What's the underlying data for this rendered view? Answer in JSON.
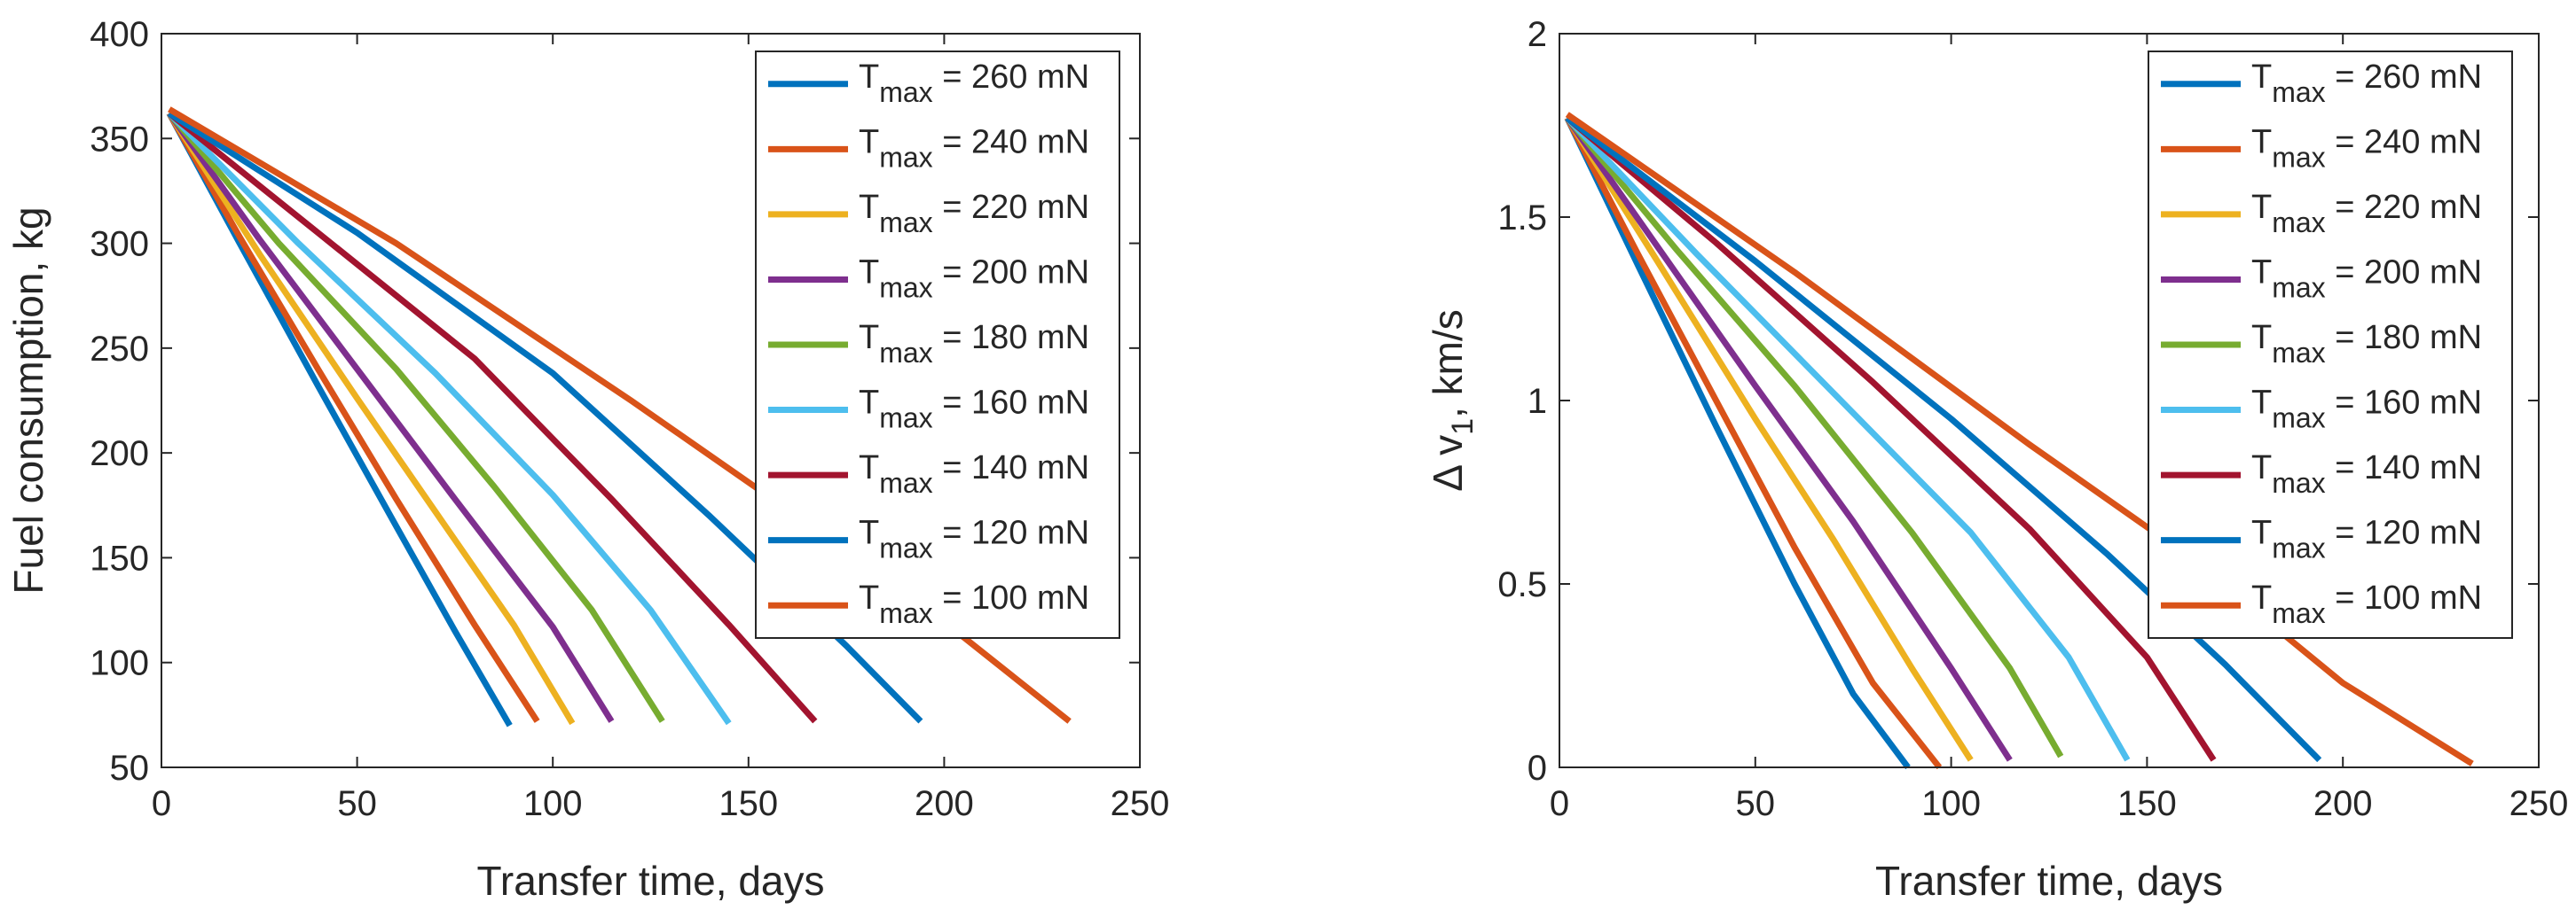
{
  "figure": {
    "panels_count": 2
  },
  "chart_data": [
    {
      "type": "line",
      "title": "",
      "xlabel": "Transfer time, days",
      "ylabel": "Fuel consumption, kg",
      "xlim": [
        0,
        250
      ],
      "ylim": [
        50,
        400
      ],
      "xticks": [
        0,
        50,
        100,
        150,
        200,
        250
      ],
      "yticks": [
        50,
        100,
        150,
        200,
        250,
        300,
        350,
        400
      ],
      "grid": false,
      "legend_position": "top-right",
      "series": [
        {
          "label_base": "T",
          "label_sub": "max",
          "label_rest": " = 260 mN",
          "color": "#0072BD",
          "points": [
            [
              2,
              362
            ],
            [
              20,
              300
            ],
            [
              40,
              232
            ],
            [
              60,
              165
            ],
            [
              75,
              115
            ],
            [
              89,
              70
            ]
          ]
        },
        {
          "label_base": "T",
          "label_sub": "max",
          "label_rest": " = 240 mN",
          "color": "#D95319",
          "points": [
            [
              2,
              362
            ],
            [
              20,
              303
            ],
            [
              40,
              240
            ],
            [
              60,
              178
            ],
            [
              80,
              118
            ],
            [
              96,
              72
            ]
          ]
        },
        {
          "label_base": "T",
          "label_sub": "max",
          "label_rest": " = 220 mN",
          "color": "#EDB120",
          "points": [
            [
              2,
              362
            ],
            [
              25,
              295
            ],
            [
              50,
              226
            ],
            [
              70,
              172
            ],
            [
              90,
              118
            ],
            [
              105,
              71
            ]
          ]
        },
        {
          "label_base": "T",
          "label_sub": "max",
          "label_rest": " = 200 mN",
          "color": "#7E2F8E",
          "points": [
            [
              2,
              362
            ],
            [
              25,
              302
            ],
            [
              50,
              240
            ],
            [
              75,
              178
            ],
            [
              100,
              117
            ],
            [
              115,
              72
            ]
          ]
        },
        {
          "label_base": "T",
          "label_sub": "max",
          "label_rest": " = 180 mN",
          "color": "#77AC30",
          "points": [
            [
              2,
              362
            ],
            [
              30,
              300
            ],
            [
              60,
              240
            ],
            [
              85,
              184
            ],
            [
              110,
              125
            ],
            [
              128,
              72
            ]
          ]
        },
        {
          "label_base": "T",
          "label_sub": "max",
          "label_rest": " = 160 mN",
          "color": "#4DBEEE",
          "points": [
            [
              2,
              362
            ],
            [
              35,
              300
            ],
            [
              70,
              238
            ],
            [
              100,
              180
            ],
            [
              125,
              125
            ],
            [
              145,
              71
            ]
          ]
        },
        {
          "label_base": "T",
          "label_sub": "max",
          "label_rest": " = 140 mN",
          "color": "#A2142F",
          "points": [
            [
              2,
              362
            ],
            [
              40,
              305
            ],
            [
              80,
              245
            ],
            [
              115,
              178
            ],
            [
              145,
              118
            ],
            [
              167,
              72
            ]
          ]
        },
        {
          "label_base": "T",
          "label_sub": "max",
          "label_rest": " = 120 mN",
          "color": "#0072BD",
          "points": [
            [
              2,
              362
            ],
            [
              50,
              305
            ],
            [
              100,
              238
            ],
            [
              140,
              170
            ],
            [
              175,
              108
            ],
            [
              194,
              72
            ]
          ]
        },
        {
          "label_base": "T",
          "label_sub": "max",
          "label_rest": " = 100 mN",
          "color": "#D95319",
          "points": [
            [
              2,
              364
            ],
            [
              60,
              300
            ],
            [
              120,
              225
            ],
            [
              170,
              160
            ],
            [
              205,
              112
            ],
            [
              232,
              72
            ]
          ]
        }
      ]
    },
    {
      "type": "line",
      "title": "",
      "xlabel": "Transfer time, days",
      "ylabel_main": "Δ v",
      "ylabel_sub": "1",
      "ylabel_rest": ", km/s",
      "xlim": [
        0,
        250
      ],
      "ylim": [
        0,
        2
      ],
      "xticks": [
        0,
        50,
        100,
        150,
        200,
        250
      ],
      "yticks": [
        0,
        0.5,
        1,
        1.5,
        2
      ],
      "grid": false,
      "legend_position": "top-right",
      "series": [
        {
          "label_base": "T",
          "label_sub": "max",
          "label_rest": " = 260 mN",
          "color": "#0072BD",
          "points": [
            [
              2,
              1.77
            ],
            [
              20,
              1.37
            ],
            [
              40,
              0.93
            ],
            [
              60,
              0.5
            ],
            [
              75,
              0.2
            ],
            [
              89,
              0.0
            ]
          ]
        },
        {
          "label_base": "T",
          "label_sub": "max",
          "label_rest": " = 240 mN",
          "color": "#D95319",
          "points": [
            [
              2,
              1.77
            ],
            [
              20,
              1.4
            ],
            [
              40,
              1.0
            ],
            [
              60,
              0.6
            ],
            [
              80,
              0.23
            ],
            [
              97,
              0.0
            ]
          ]
        },
        {
          "label_base": "T",
          "label_sub": "max",
          "label_rest": " = 220 mN",
          "color": "#EDB120",
          "points": [
            [
              2,
              1.77
            ],
            [
              25,
              1.38
            ],
            [
              50,
              0.95
            ],
            [
              70,
              0.62
            ],
            [
              90,
              0.27
            ],
            [
              105,
              0.02
            ]
          ]
        },
        {
          "label_base": "T",
          "label_sub": "max",
          "label_rest": " = 200 mN",
          "color": "#7E2F8E",
          "points": [
            [
              2,
              1.77
            ],
            [
              25,
              1.42
            ],
            [
              50,
              1.04
            ],
            [
              75,
              0.67
            ],
            [
              100,
              0.27
            ],
            [
              115,
              0.02
            ]
          ]
        },
        {
          "label_base": "T",
          "label_sub": "max",
          "label_rest": " = 180 mN",
          "color": "#77AC30",
          "points": [
            [
              2,
              1.77
            ],
            [
              30,
              1.41
            ],
            [
              60,
              1.04
            ],
            [
              90,
              0.64
            ],
            [
              115,
              0.27
            ],
            [
              128,
              0.03
            ]
          ]
        },
        {
          "label_base": "T",
          "label_sub": "max",
          "label_rest": " = 160 mN",
          "color": "#4DBEEE",
          "points": [
            [
              2,
              1.77
            ],
            [
              35,
              1.4
            ],
            [
              70,
              1.02
            ],
            [
              105,
              0.64
            ],
            [
              130,
              0.3
            ],
            [
              145,
              0.02
            ]
          ]
        },
        {
          "label_base": "T",
          "label_sub": "max",
          "label_rest": " = 140 mN",
          "color": "#A2142F",
          "points": [
            [
              2,
              1.77
            ],
            [
              40,
              1.43
            ],
            [
              80,
              1.05
            ],
            [
              120,
              0.65
            ],
            [
              150,
              0.3
            ],
            [
              167,
              0.02
            ]
          ]
        },
        {
          "label_base": "T",
          "label_sub": "max",
          "label_rest": " = 120 mN",
          "color": "#0072BD",
          "points": [
            [
              2,
              1.77
            ],
            [
              50,
              1.38
            ],
            [
              100,
              0.95
            ],
            [
              140,
              0.58
            ],
            [
              170,
              0.28
            ],
            [
              194,
              0.02
            ]
          ]
        },
        {
          "label_base": "T",
          "label_sub": "max",
          "label_rest": " = 100 mN",
          "color": "#D95319",
          "points": [
            [
              2,
              1.78
            ],
            [
              60,
              1.35
            ],
            [
              120,
              0.88
            ],
            [
              160,
              0.58
            ],
            [
              200,
              0.23
            ],
            [
              233,
              0.01
            ]
          ]
        }
      ]
    }
  ]
}
